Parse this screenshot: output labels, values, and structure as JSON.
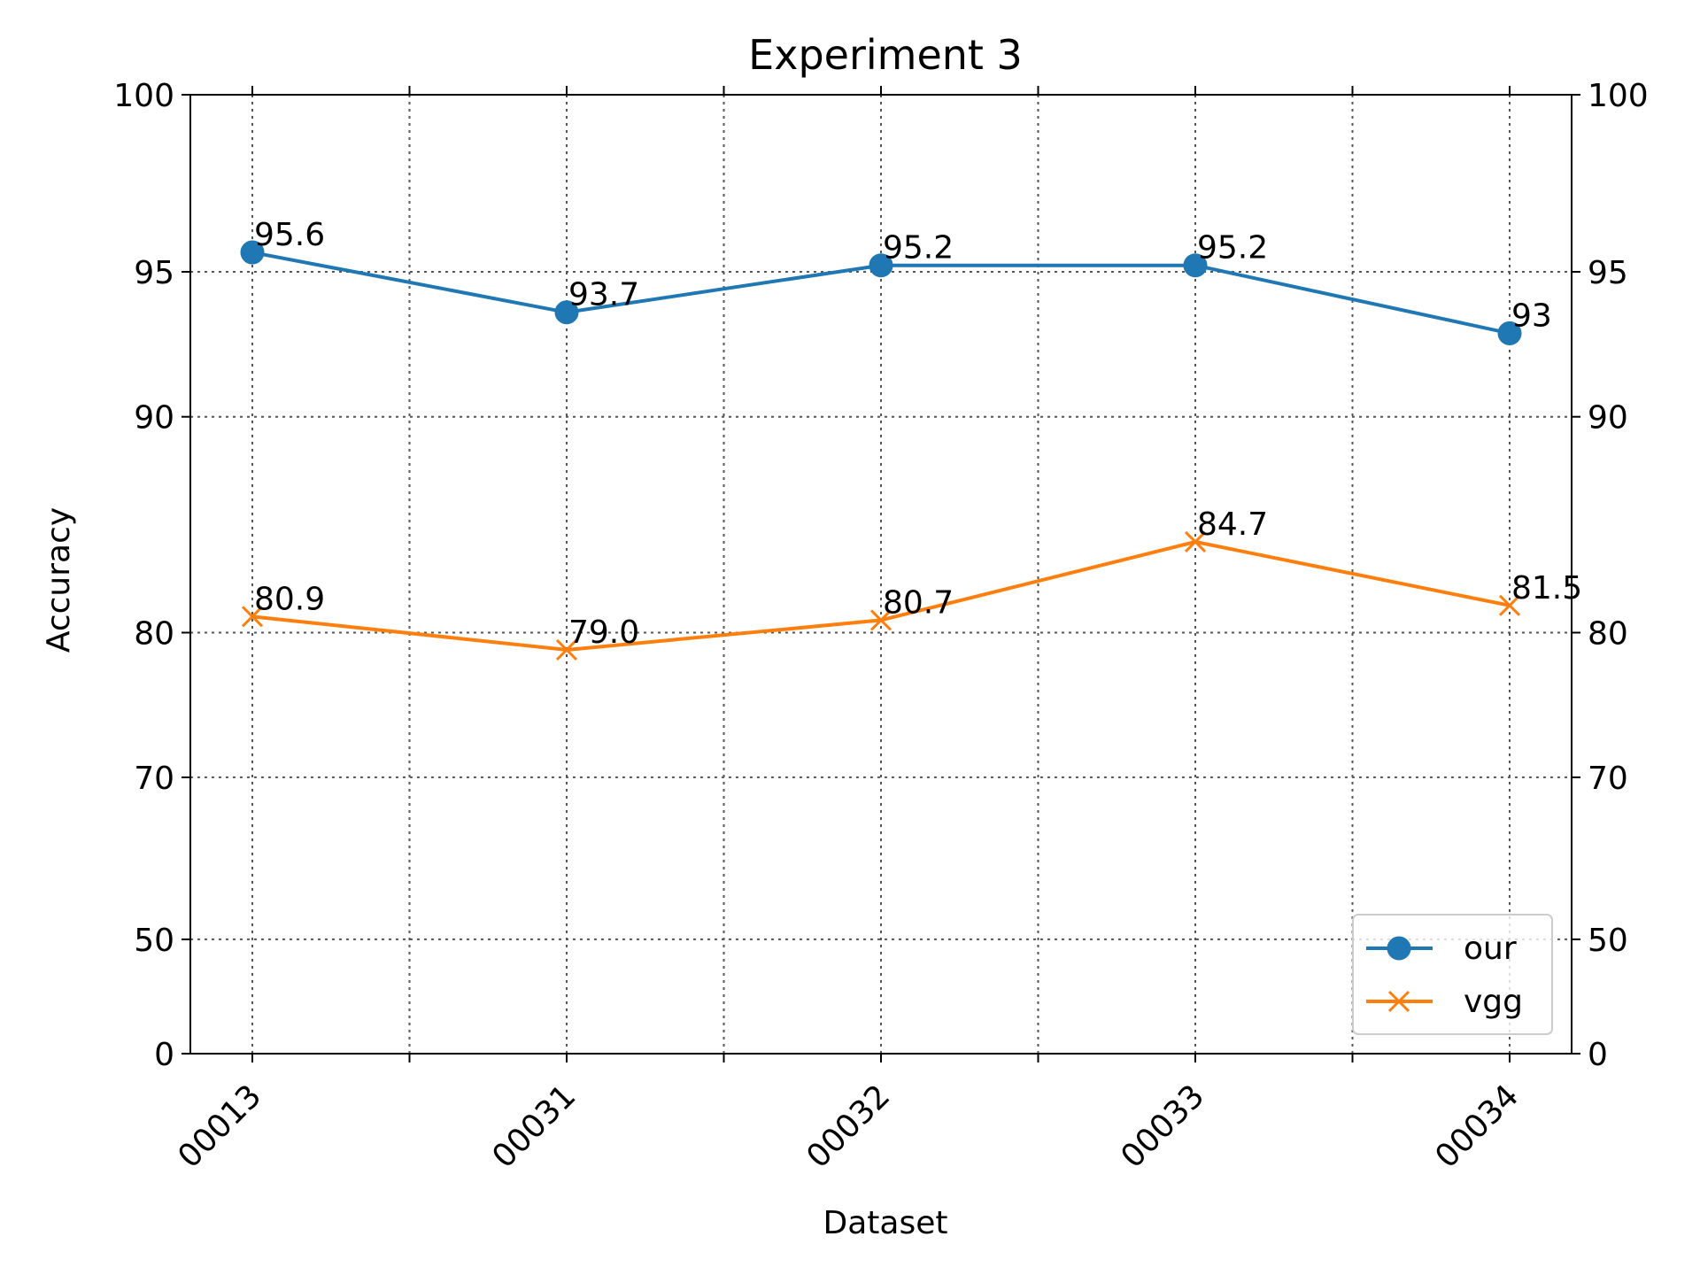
{
  "chart_data": {
    "type": "line",
    "title": "Experiment 3",
    "xlabel": "Dataset",
    "ylabel": "Accuracy",
    "categories": [
      "00013",
      "00031",
      "00032",
      "00033",
      "00034"
    ],
    "ylim": [
      0,
      100
    ],
    "yticks": [
      0,
      50,
      70,
      80,
      90,
      95,
      100
    ],
    "y_scale": "exponential",
    "minor_xticks": true,
    "right_axis_mirror": true,
    "grid": true,
    "legend_position": "lower-right",
    "series": [
      {
        "name": "our",
        "color": "#1f77b4",
        "marker": "circle",
        "values": [
          95.6,
          93.7,
          95.2,
          95.2,
          93.0
        ],
        "labels": [
          "95.6",
          "93.7",
          "95.2",
          "95.2",
          "93"
        ]
      },
      {
        "name": "vgg",
        "color": "#ff7f0e",
        "marker": "x",
        "values": [
          80.9,
          79.0,
          80.7,
          84.7,
          81.5
        ],
        "labels": [
          "80.9",
          "79.0",
          "80.7",
          "84.7",
          "81.5"
        ]
      }
    ]
  }
}
